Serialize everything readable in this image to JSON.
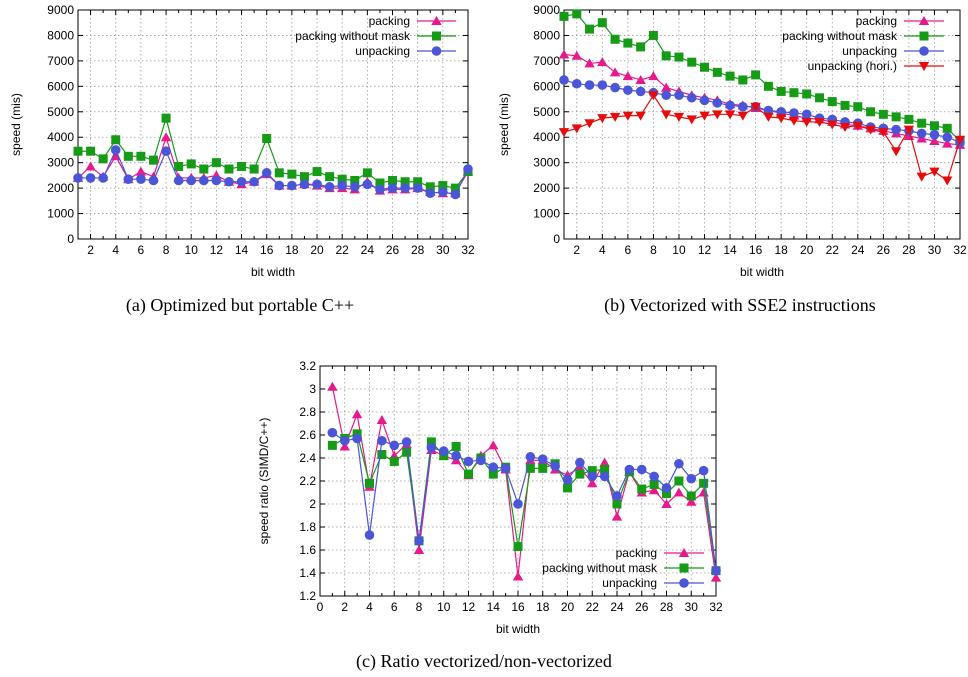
{
  "figure": {
    "captions": [
      "(a) Optimized but portable C++",
      "(b) Vectorized with SSE2 instructions",
      "(c) Ratio vectorized/non-vectorized"
    ]
  },
  "colors": {
    "packing": "#e8198b",
    "packing without mask": "#169b16",
    "unpacking": "#4a55d8",
    "unpacking (hori.)": "#e60c0c"
  },
  "chart_data": [
    {
      "type": "line",
      "caption": "(a) Optimized but portable C++",
      "xlabel": "bit width",
      "ylabel": "speed (mis)",
      "xlim": [
        1,
        32
      ],
      "ylim": [
        0,
        9000
      ],
      "xticks": [
        2,
        4,
        6,
        8,
        10,
        12,
        14,
        16,
        18,
        20,
        22,
        24,
        26,
        28,
        30,
        32
      ],
      "yticks": [
        0,
        1000,
        2000,
        3000,
        4000,
        5000,
        6000,
        7000,
        8000,
        9000
      ],
      "grid": true,
      "legend_position": "top-right",
      "x": [
        1,
        2,
        3,
        4,
        5,
        6,
        7,
        8,
        9,
        10,
        11,
        12,
        13,
        14,
        15,
        16,
        17,
        18,
        19,
        20,
        21,
        22,
        23,
        24,
        25,
        26,
        27,
        28,
        29,
        30,
        31,
        32
      ],
      "series": [
        {
          "name": "packing",
          "marker": "triangle-up",
          "values": [
            2400,
            2850,
            2450,
            3250,
            2350,
            2650,
            2450,
            4000,
            2400,
            2400,
            2400,
            2500,
            2250,
            2150,
            2250,
            2550,
            2100,
            2100,
            2150,
            2100,
            2000,
            2000,
            1950,
            2250,
            1900,
            1950,
            1950,
            2000,
            1850,
            1800,
            1800,
            2650
          ]
        },
        {
          "name": "packing without mask",
          "marker": "square",
          "values": [
            3450,
            3450,
            3150,
            3900,
            3250,
            3250,
            3100,
            4750,
            2850,
            2950,
            2750,
            3000,
            2750,
            2850,
            2750,
            3950,
            2600,
            2550,
            2450,
            2650,
            2450,
            2350,
            2300,
            2600,
            2200,
            2300,
            2250,
            2250,
            2050,
            2100,
            2000,
            2650
          ]
        },
        {
          "name": "unpacking",
          "marker": "circle",
          "values": [
            2400,
            2400,
            2400,
            3500,
            2350,
            2350,
            2300,
            3450,
            2300,
            2300,
            2300,
            2300,
            2250,
            2250,
            2250,
            2600,
            2100,
            2100,
            2150,
            2150,
            2050,
            2100,
            2050,
            2150,
            1950,
            2000,
            2000,
            2000,
            1800,
            1850,
            1750,
            2750
          ]
        }
      ]
    },
    {
      "type": "line",
      "caption": "(b) Vectorized with SSE2 instructions",
      "xlabel": "bit width",
      "ylabel": "speed (mis)",
      "xlim": [
        1,
        32
      ],
      "ylim": [
        0,
        9000
      ],
      "xticks": [
        2,
        4,
        6,
        8,
        10,
        12,
        14,
        16,
        18,
        20,
        22,
        24,
        26,
        28,
        30,
        32
      ],
      "yticks": [
        0,
        1000,
        2000,
        3000,
        4000,
        5000,
        6000,
        7000,
        8000,
        9000
      ],
      "grid": true,
      "legend_position": "top-right",
      "x": [
        1,
        2,
        3,
        4,
        5,
        6,
        7,
        8,
        9,
        10,
        11,
        12,
        13,
        14,
        15,
        16,
        17,
        18,
        19,
        20,
        21,
        22,
        23,
        24,
        25,
        26,
        27,
        28,
        29,
        30,
        31,
        32
      ],
      "series": [
        {
          "name": "packing",
          "marker": "triangle-up",
          "values": [
            7250,
            7200,
            6900,
            6950,
            6550,
            6400,
            6250,
            6400,
            5950,
            5800,
            5650,
            5550,
            5450,
            5300,
            5250,
            5150,
            5050,
            4950,
            4850,
            4750,
            4700,
            4600,
            4500,
            4450,
            4350,
            4250,
            4150,
            4050,
            3950,
            3850,
            3750,
            3700
          ]
        },
        {
          "name": "packing without mask",
          "marker": "square",
          "values": [
            8750,
            8850,
            8250,
            8500,
            7850,
            7700,
            7550,
            8000,
            7200,
            7150,
            6950,
            6750,
            6550,
            6400,
            6250,
            6450,
            6000,
            5800,
            5750,
            5700,
            5550,
            5400,
            5250,
            5200,
            5000,
            4900,
            4800,
            4700,
            4550,
            4450,
            4350,
            3850
          ]
        },
        {
          "name": "unpacking",
          "marker": "circle",
          "values": [
            6250,
            6100,
            6050,
            6050,
            5950,
            5850,
            5800,
            5750,
            5650,
            5650,
            5550,
            5450,
            5350,
            5250,
            5200,
            5200,
            5050,
            5000,
            4950,
            4900,
            4750,
            4700,
            4600,
            4550,
            4400,
            4350,
            4300,
            4250,
            4150,
            4100,
            4000,
            3800
          ]
        },
        {
          "name": "unpacking (hori.)",
          "marker": "triangle-down",
          "values": [
            4200,
            4350,
            4550,
            4750,
            4800,
            4850,
            4850,
            5650,
            4900,
            4800,
            4700,
            4850,
            4900,
            4900,
            4850,
            5200,
            4800,
            4750,
            4650,
            4600,
            4600,
            4500,
            4400,
            4450,
            4300,
            4200,
            3450,
            4300,
            2450,
            2650,
            2300,
            3900
          ]
        }
      ]
    },
    {
      "type": "line",
      "caption": "(c) Ratio vectorized/non-vectorized",
      "xlabel": "bit width",
      "ylabel": "speed ratio (SIMD/C++)",
      "xlim": [
        0,
        32
      ],
      "ylim": [
        1.2,
        3.2
      ],
      "xticks": [
        0,
        2,
        4,
        6,
        8,
        10,
        12,
        14,
        16,
        18,
        20,
        22,
        24,
        26,
        28,
        30,
        32
      ],
      "yticks": [
        1.2,
        1.4,
        1.6,
        1.8,
        2,
        2.2,
        2.4,
        2.6,
        2.8,
        3,
        3.2
      ],
      "grid": true,
      "legend_position": "bottom-right",
      "x": [
        1,
        2,
        3,
        4,
        5,
        6,
        7,
        8,
        9,
        10,
        11,
        12,
        13,
        14,
        15,
        16,
        17,
        18,
        19,
        20,
        21,
        22,
        23,
        24,
        25,
        26,
        27,
        28,
        29,
        30,
        31,
        32
      ],
      "series": [
        {
          "name": "packing",
          "marker": "triangle-up",
          "values": [
            3.02,
            2.5,
            2.78,
            2.15,
            2.73,
            2.42,
            2.52,
            1.6,
            2.47,
            2.42,
            2.38,
            2.25,
            2.42,
            2.51,
            2.3,
            1.37,
            2.38,
            2.38,
            2.3,
            2.25,
            2.32,
            2.18,
            2.36,
            1.89,
            2.28,
            2.1,
            2.12,
            2.0,
            2.1,
            2.02,
            2.1,
            1.36
          ]
        },
        {
          "name": "packing without mask",
          "marker": "square",
          "values": [
            2.51,
            2.57,
            2.61,
            2.18,
            2.43,
            2.37,
            2.45,
            1.68,
            2.54,
            2.42,
            2.5,
            2.26,
            2.4,
            2.26,
            2.32,
            1.63,
            2.31,
            2.31,
            2.35,
            2.14,
            2.26,
            2.29,
            2.3,
            2.0,
            2.28,
            2.13,
            2.17,
            2.09,
            2.2,
            2.07,
            2.18,
            1.42
          ]
        },
        {
          "name": "unpacking",
          "marker": "circle",
          "values": [
            2.62,
            2.55,
            2.57,
            1.73,
            2.55,
            2.51,
            2.54,
            1.68,
            2.49,
            2.46,
            2.42,
            2.37,
            2.38,
            2.32,
            2.31,
            2.0,
            2.41,
            2.39,
            2.33,
            2.21,
            2.36,
            2.24,
            2.24,
            2.07,
            2.3,
            2.3,
            2.24,
            2.14,
            2.35,
            2.22,
            2.29,
            1.42
          ]
        }
      ]
    }
  ]
}
